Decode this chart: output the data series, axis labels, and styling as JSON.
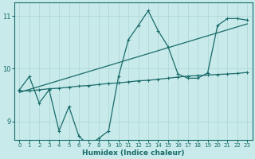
{
  "xlabel": "Humidex (Indice chaleur)",
  "bg_color": "#c8eaea",
  "line_color": "#1a6b6b",
  "grid_color": "#b0d8d8",
  "xlim": [
    -0.5,
    23.5
  ],
  "ylim": [
    8.65,
    11.25
  ],
  "yticks": [
    9,
    10,
    11
  ],
  "xticks": [
    0,
    1,
    2,
    3,
    4,
    5,
    6,
    7,
    8,
    9,
    10,
    11,
    12,
    13,
    14,
    15,
    16,
    17,
    18,
    19,
    20,
    21,
    22,
    23
  ],
  "jagged_x": [
    0,
    1,
    2,
    3,
    4,
    5,
    6,
    7,
    8,
    9,
    10,
    11,
    12,
    13,
    14,
    15,
    16,
    17,
    18,
    19,
    20,
    21,
    22,
    23
  ],
  "jagged_y": [
    9.6,
    9.85,
    9.35,
    9.6,
    8.82,
    9.28,
    8.72,
    8.55,
    8.68,
    8.82,
    9.85,
    10.55,
    10.82,
    11.1,
    10.72,
    10.42,
    9.9,
    9.82,
    9.82,
    9.92,
    10.82,
    10.95,
    10.95,
    10.92
  ],
  "trend_x": [
    0,
    23
  ],
  "trend_y": [
    9.55,
    10.85
  ],
  "flat_x": [
    0,
    1,
    2,
    3,
    4,
    5,
    6,
    7,
    8,
    9,
    10,
    11,
    12,
    13,
    14,
    15,
    16,
    17,
    18,
    19,
    20,
    21,
    22,
    23
  ],
  "flat_y": [
    9.58,
    9.58,
    9.6,
    9.62,
    9.63,
    9.65,
    9.67,
    9.68,
    9.7,
    9.72,
    9.73,
    9.75,
    9.77,
    9.78,
    9.8,
    9.82,
    9.84,
    9.86,
    9.87,
    9.88,
    9.89,
    9.9,
    9.91,
    9.93
  ]
}
